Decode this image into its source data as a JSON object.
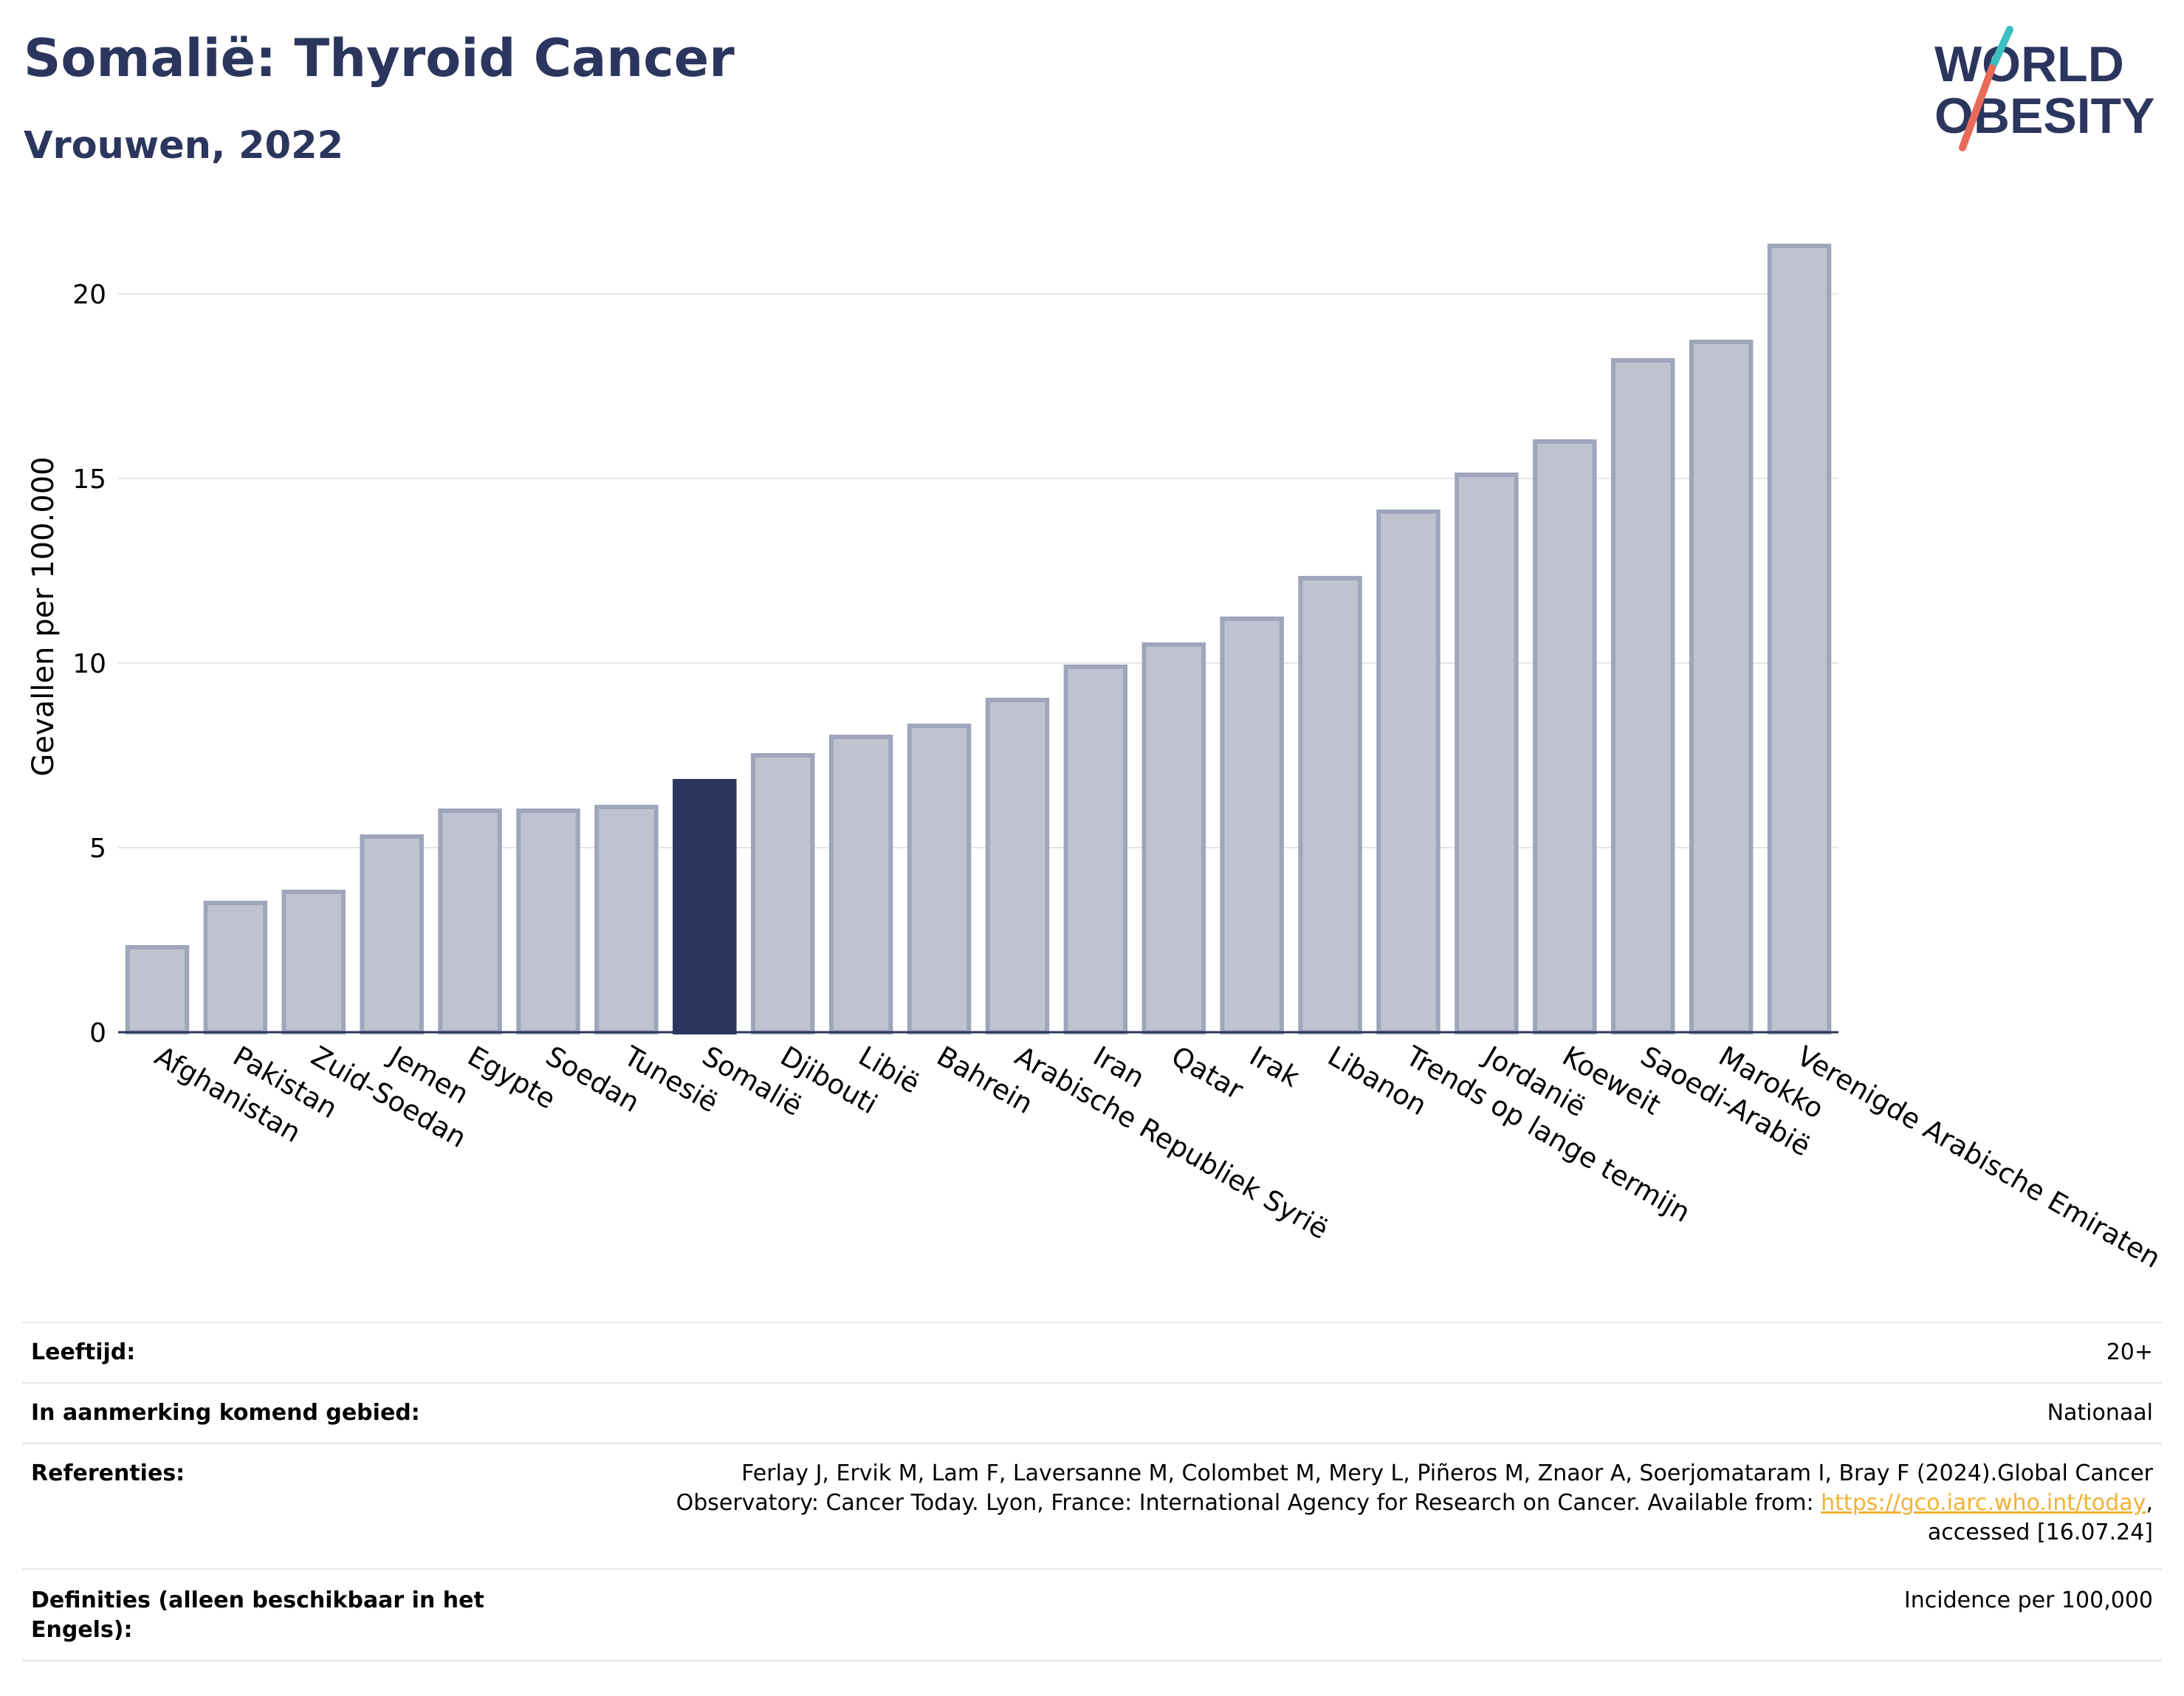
{
  "header": {
    "title": "Somalië: Thyroid Cancer",
    "subtitle": "Vrouwen, 2022"
  },
  "logo": {
    "line1": "WORLD",
    "line2": "OBESITY",
    "colors": {
      "text": "#2b365e",
      "slash_top": "#3bbfbf",
      "slash_bottom": "#ea6a5a"
    }
  },
  "colors": {
    "bar_fill": "#bfc3d0",
    "bar_stroke": "#9fa6bb",
    "highlight": "#2b365e",
    "grid": "#e6e6e6",
    "axis": "#2b365e"
  },
  "chart_data": {
    "type": "bar",
    "ylabel": "Gevallen per 100.000",
    "ylim": [
      0,
      22
    ],
    "yticks": [
      0,
      5,
      10,
      15,
      20
    ],
    "grid": true,
    "highlight": "Somalië",
    "categories": [
      "Afghanistan",
      "Pakistan",
      "Zuid-Soedan",
      "Jemen",
      "Egypte",
      "Soedan",
      "Tunesië",
      "Somalië",
      "Djibouti",
      "Libië",
      "Bahrein",
      "Arabische Republiek Syrië",
      "Iran",
      "Qatar",
      "Irak",
      "Libanon",
      "Trends op lange termijn",
      "Jordanië",
      "Koeweit",
      "Saoedi-Arabië",
      "Marokko",
      "Verenigde Arabische Emiraten"
    ],
    "values": [
      2.3,
      3.5,
      3.8,
      5.3,
      6.0,
      6.0,
      6.1,
      6.8,
      7.5,
      8.0,
      8.3,
      9.0,
      9.9,
      10.5,
      11.2,
      12.3,
      14.1,
      15.1,
      16.0,
      18.2,
      18.7,
      21.3
    ]
  },
  "meta": {
    "age_label": "Leeftijd:",
    "age_value": "20+",
    "area_label": "In aanmerking komend gebied:",
    "area_value": "Nationaal",
    "ref_label": "Referenties:",
    "ref_text_1": "Ferlay J, Ervik M, Lam F, Laversanne M, Colombet M, Mery L, Piñeros M, Znaor A, Soerjomataram I, Bray F (2024).Global Cancer",
    "ref_text_2": "Observatory: Cancer Today. Lyon, France: International Agency for Research on Cancer. Available from: ",
    "ref_link": "https://gco.iarc.who.int/today",
    "ref_text_3": ",",
    "ref_text_4": "accessed [16.07.24]",
    "def_label": "Definities (alleen beschikbaar in het Engels):",
    "def_value": "Incidence per 100,000"
  }
}
